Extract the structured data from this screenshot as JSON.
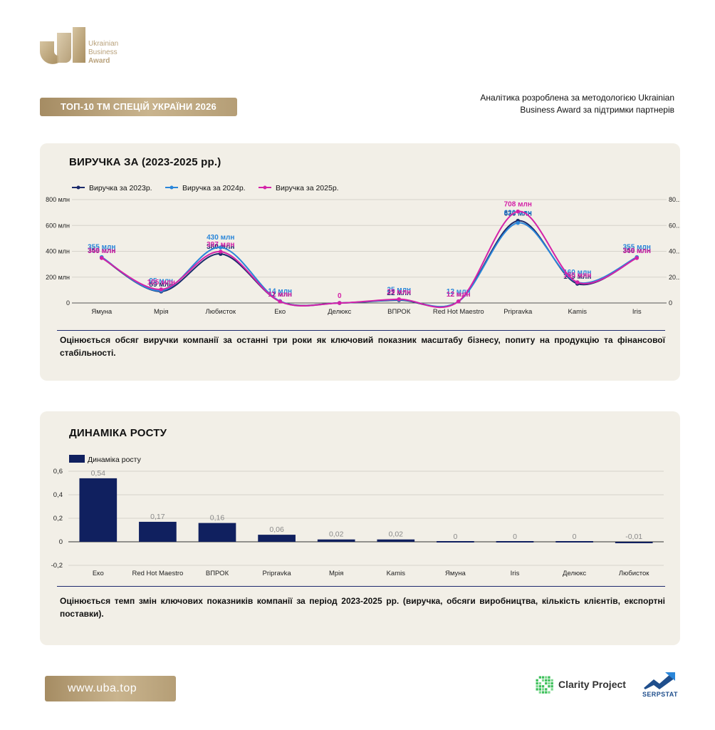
{
  "header": {
    "logo": {
      "line1": "Ukrainian",
      "line2": "Business",
      "line3": "Award"
    },
    "banner": "ТОП-10 ТМ СПЕЦІЙ УКРАЇНИ 2026",
    "note": "Аналітика розроблена за методологією Ukrainian Business Award за підтримки партнерів"
  },
  "colors": {
    "gold": "#b9a27c",
    "card_bg": "#f2efe7",
    "navy": "#10205f",
    "series_2023": "#1b2a6b",
    "series_2024": "#2a86d9",
    "series_2025": "#d422a8"
  },
  "revenue_card": {
    "title": "ВИРУЧКА ЗА (2023-2025 рр.)",
    "description": "Оцінюється обсяг виручки компанії за останні три роки як ключовий показник масштабу бізнесу, попиту на продукцію та фінансової стабільності."
  },
  "growth_card": {
    "title": "ДИНАМІКА РОСТУ",
    "description": "Оцінюється темп змін ключових показників компанії за період 2023-2025 рр. (виручка, обсяги виробництва, кількість клієнтів, експортні поставки)."
  },
  "chart_data": [
    {
      "type": "line",
      "categories": [
        "Ямуна",
        "Мрія",
        "Любисток",
        "Еко",
        "Делюкс",
        "ВПРОК",
        "Red Hot Maestro",
        "Pripravka",
        "Kamis",
        "Iris"
      ],
      "series": [
        {
          "name": "Виручка за 2023р.",
          "values": [
            350,
            89,
            380,
            12,
            0,
            22,
            12,
            636,
            149,
            350
          ],
          "labels": [
            "350 млн",
            "89 млн",
            "380 млн",
            "12 млн",
            "",
            "22 млн",
            "12 млн",
            "636 млн",
            "149 млн",
            "350 млн"
          ]
        },
        {
          "name": "Виручка за 2024р.",
          "values": [
            355,
            95,
            430,
            14,
            0,
            25,
            12,
            620,
            160,
            355
          ],
          "labels": [
            "355 млн",
            "95 млн",
            "430 млн",
            "14 млн",
            "",
            "25 млн",
            "12 млн",
            "620 млн",
            "160 млн",
            "355 млн"
          ]
        },
        {
          "name": "Виручка за 2025р.",
          "values": [
            348,
            105,
            397,
            11,
            0,
            29,
            12,
            708,
            160,
            348
          ],
          "labels": [
            "348 млн",
            "105 млн",
            "397 млн",
            "11 млн",
            "0",
            "29 млн",
            "12 млн",
            "708 млн",
            "160 млн",
            "348 млн"
          ]
        }
      ],
      "ylim": [
        0,
        800
      ],
      "yticks": [
        "0",
        "200 млн",
        "400 млн",
        "600 млн",
        "800 млн"
      ],
      "yticks_right": [
        "0",
        "20...",
        "40...",
        "60...",
        "80..."
      ],
      "grid": true,
      "legend": "top-left"
    },
    {
      "type": "bar",
      "categories": [
        "Еко",
        "Red Hot Maestro",
        "ВПРОК",
        "Pripravka",
        "Мрія",
        "Kamis",
        "Ямуна",
        "Iris",
        "Делюкс",
        "Любисток"
      ],
      "series": [
        {
          "name": "Динаміка росту",
          "values": [
            0.54,
            0.17,
            0.16,
            0.06,
            0.02,
            0.02,
            0,
            0,
            0,
            -0.01
          ],
          "labels": [
            "0,54",
            "0,17",
            "0,16",
            "0,06",
            "0,02",
            "0,02",
            "0",
            "0",
            "0",
            "-0,01"
          ]
        }
      ],
      "ylim": [
        -0.2,
        0.6
      ],
      "yticks": [
        "-0,2",
        "0",
        "0,2",
        "0,4",
        "0,6"
      ],
      "grid": true,
      "legend": "top-left"
    }
  ],
  "footer": {
    "url": "www.uba.top",
    "partner1": "Clarity Project",
    "partner2": "SERPSTAT"
  }
}
